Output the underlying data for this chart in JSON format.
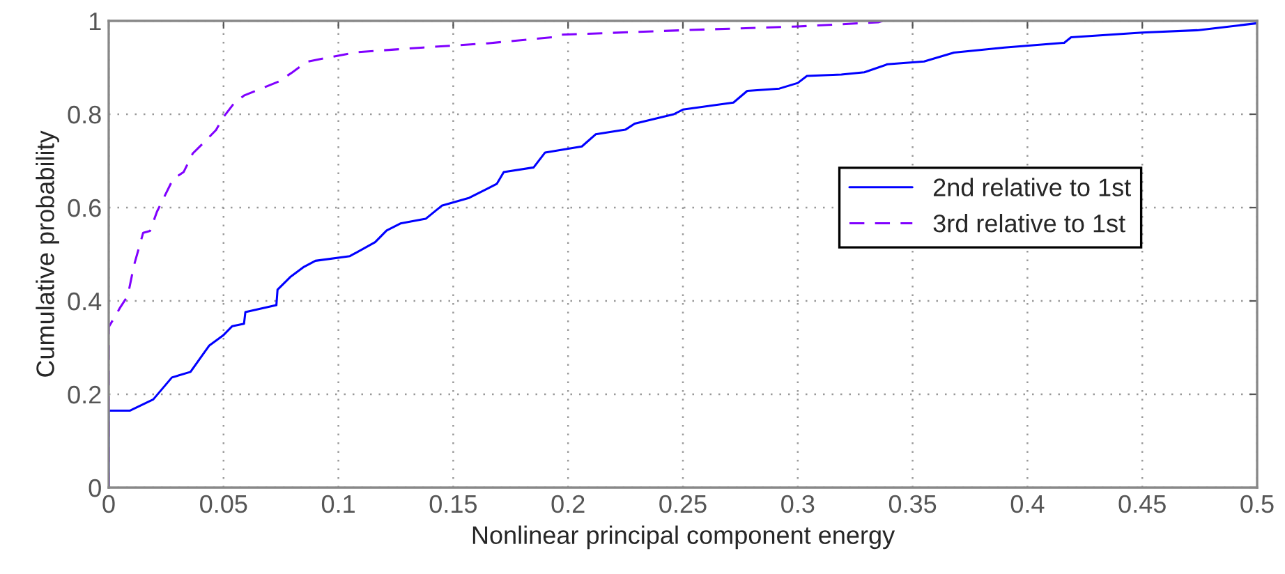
{
  "chart_data": {
    "type": "line",
    "xlabel": "Nonlinear principal component energy",
    "ylabel": "Cumulative probability",
    "xlim": [
      0,
      0.5
    ],
    "ylim": [
      0,
      1
    ],
    "xticks": [
      0,
      0.05,
      0.1,
      0.15,
      0.2,
      0.25,
      0.3,
      0.35,
      0.4,
      0.45,
      0.5
    ],
    "yticks": [
      0,
      0.2,
      0.4,
      0.6,
      0.8,
      1
    ],
    "grid": true,
    "legend": "right",
    "marker": "none",
    "series": [
      {
        "name": "2nd relative to 1st",
        "color": "#0000ff",
        "line_style": "solid",
        "x": [
          0,
          0,
          0.0093,
          0.0194,
          0.0275,
          0.0356,
          0.0437,
          0.0498,
          0.0538,
          0.0589,
          0.0595,
          0.073,
          0.0735,
          0.079,
          0.085,
          0.09,
          0.105,
          0.116,
          0.121,
          0.127,
          0.138,
          0.145,
          0.157,
          0.165,
          0.169,
          0.172,
          0.185,
          0.19,
          0.206,
          0.212,
          0.225,
          0.229,
          0.246,
          0.25,
          0.272,
          0.278,
          0.292,
          0.3,
          0.304,
          0.319,
          0.329,
          0.339,
          0.355,
          0.368,
          0.39,
          0.416,
          0.419,
          0.45,
          0.474,
          0.5
        ],
        "values": [
          0,
          0.165,
          0.165,
          0.189,
          0.236,
          0.248,
          0.304,
          0.326,
          0.346,
          0.351,
          0.376,
          0.391,
          0.424,
          0.451,
          0.473,
          0.486,
          0.496,
          0.526,
          0.551,
          0.566,
          0.576,
          0.604,
          0.621,
          0.641,
          0.651,
          0.676,
          0.686,
          0.718,
          0.731,
          0.757,
          0.767,
          0.78,
          0.8,
          0.81,
          0.825,
          0.85,
          0.855,
          0.867,
          0.882,
          0.885,
          0.89,
          0.907,
          0.913,
          0.932,
          0.943,
          0.953,
          0.965,
          0.975,
          0.98,
          0.995
        ]
      },
      {
        "name": "3rd relative to 1st",
        "color": "#8000ff",
        "line_style": "dashed",
        "x": [
          0,
          0,
          0.005,
          0.0083,
          0.011,
          0.015,
          0.018,
          0.021,
          0.024,
          0.028,
          0.0326,
          0.0366,
          0.0407,
          0.0467,
          0.0498,
          0.0548,
          0.0589,
          0.074,
          0.08,
          0.086,
          0.094,
          0.108,
          0.137,
          0.165,
          0.193,
          0.195,
          0.25,
          0.3,
          0.335,
          0.337
        ],
        "values": [
          0,
          0.344,
          0.386,
          0.411,
          0.476,
          0.546,
          0.55,
          0.591,
          0.621,
          0.661,
          0.676,
          0.716,
          0.736,
          0.766,
          0.793,
          0.825,
          0.84,
          0.87,
          0.89,
          0.912,
          0.92,
          0.933,
          0.943,
          0.952,
          0.965,
          0.97,
          0.98,
          0.988,
          0.997,
          1
        ]
      }
    ]
  }
}
